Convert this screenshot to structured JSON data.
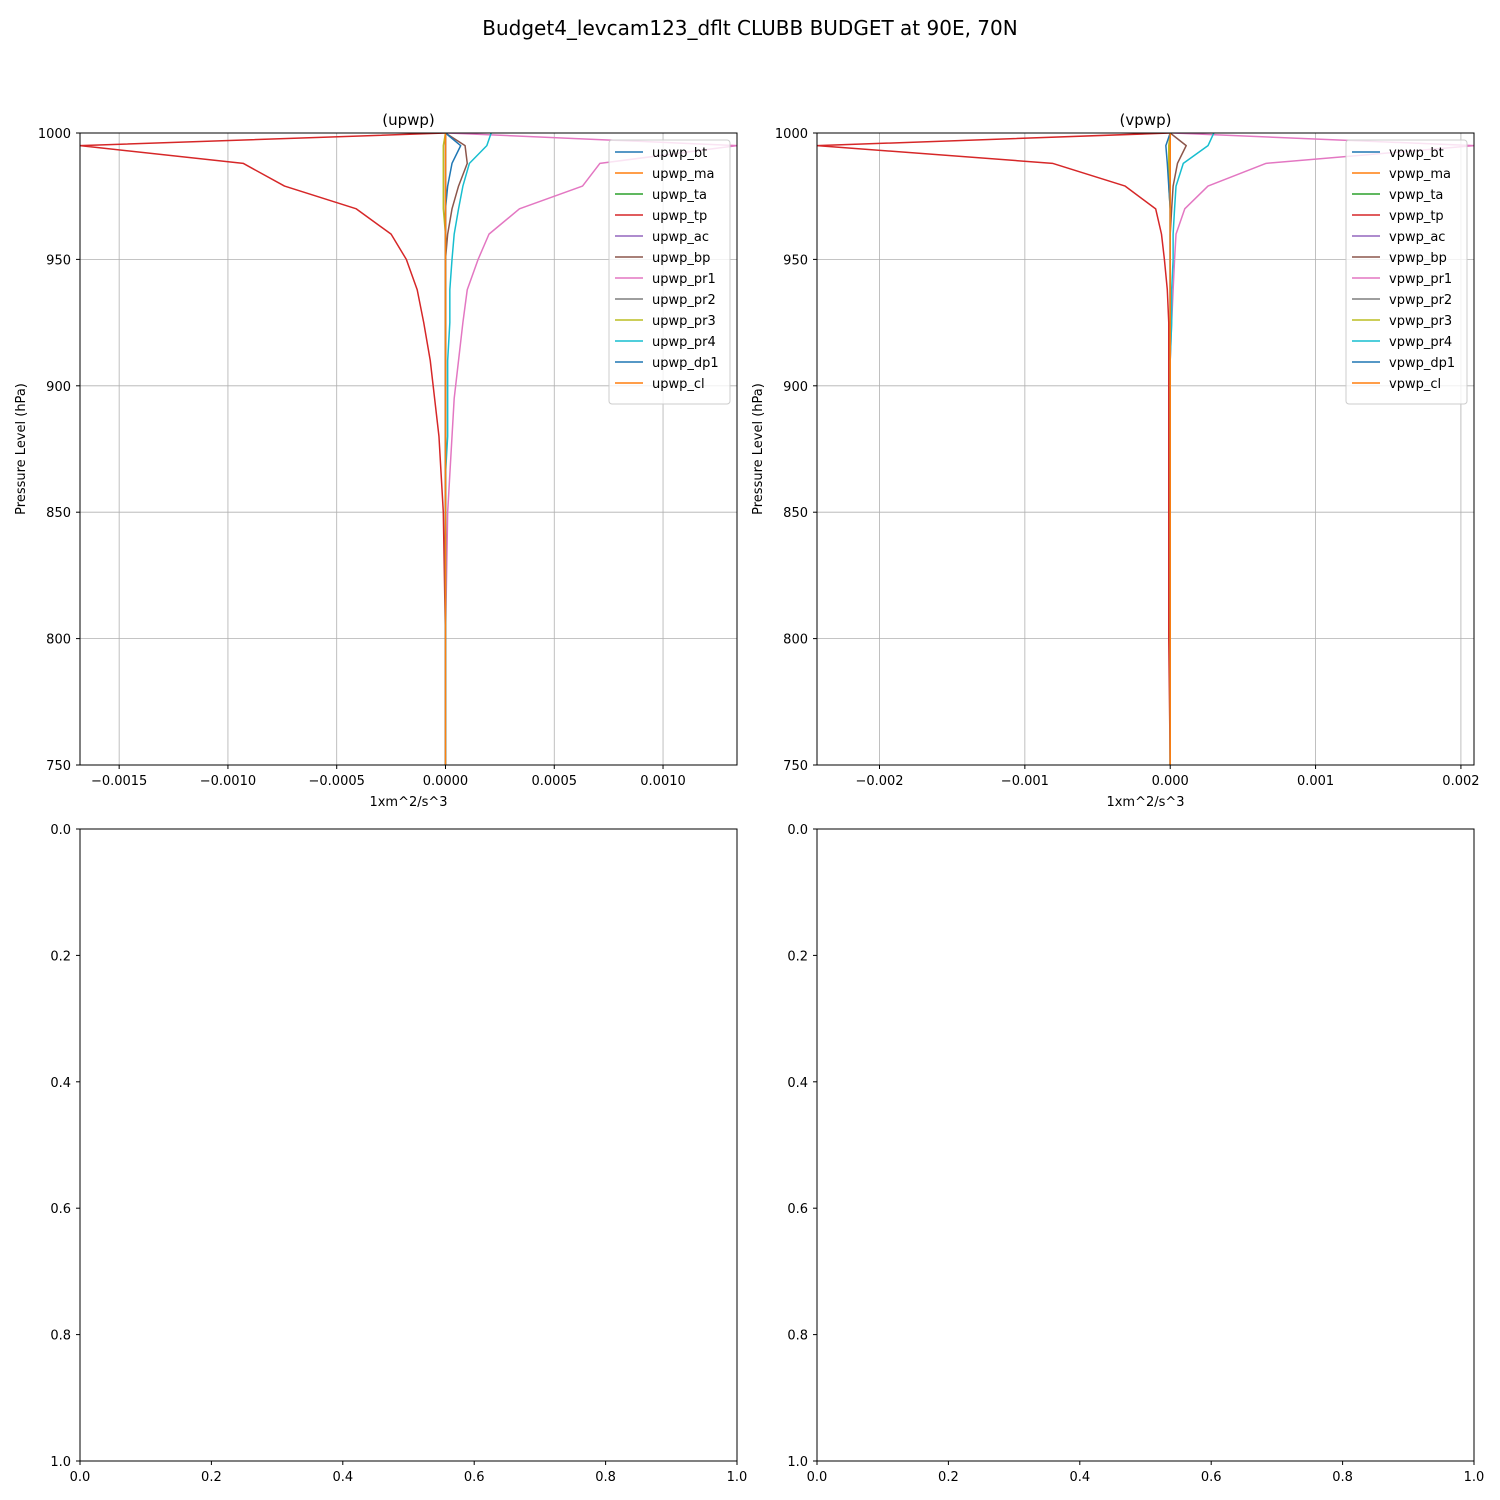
{
  "figure": {
    "suptitle": "Budget4_levcam123_dflt CLUBB BUDGET at 90E, 70N"
  },
  "chart_data": [
    {
      "type": "line",
      "title": "(upwp)",
      "xlabel": "1xm^2/s^3",
      "ylabel": "Pressure Level (hPa)",
      "xlim": [
        -0.00168,
        0.00134
      ],
      "ylim": [
        1000,
        750
      ],
      "x_ticks": [
        "−0.0015",
        "−0.0010",
        "−0.0005",
        "0.0000",
        "0.0005",
        "0.0010"
      ],
      "x_tick_values": [
        -0.0015,
        -0.001,
        -0.0005,
        0,
        0.0005,
        0.001
      ],
      "y_ticks": [
        "750",
        "800",
        "850",
        "900",
        "950",
        "1000"
      ],
      "y_tick_values": [
        750,
        800,
        850,
        900,
        950,
        1000
      ],
      "grid": true,
      "legend_position": "upper-right",
      "levels": [
        750,
        800,
        850,
        865,
        880,
        895,
        910,
        925,
        938,
        950,
        960,
        970,
        979,
        988,
        995,
        1000
      ],
      "series": [
        {
          "name": "upwp_bt",
          "color": "#1f77b4",
          "values": [
            0,
            0,
            0,
            0,
            0,
            0,
            0,
            0,
            0,
            0,
            0,
            0,
            0,
            0,
            0,
            0
          ]
        },
        {
          "name": "upwp_ma",
          "color": "#ff7f0e",
          "values": [
            0,
            0,
            0,
            0,
            0,
            0,
            0,
            0,
            0,
            0,
            0,
            0,
            0,
            0,
            0,
            0
          ]
        },
        {
          "name": "upwp_ta",
          "color": "#2ca02c",
          "values": [
            0,
            0,
            0,
            0,
            0,
            0,
            0,
            0,
            0,
            0,
            0,
            0,
            0,
            0,
            0,
            0
          ]
        },
        {
          "name": "upwp_tp",
          "color": "#d62728",
          "values": [
            0,
            0,
            -1e-05,
            -2e-05,
            -3e-05,
            -5e-05,
            -7e-05,
            -0.0001,
            -0.00013,
            -0.00018,
            -0.00025,
            -0.00041,
            -0.00074,
            -0.00093,
            -0.00168,
            0
          ]
        },
        {
          "name": "upwp_ac",
          "color": "#9467bd",
          "values": [
            0,
            0,
            0,
            0,
            0,
            0,
            0,
            0,
            0,
            0,
            0,
            0,
            0,
            0,
            0,
            0
          ]
        },
        {
          "name": "upwp_bp",
          "color": "#8c564b",
          "values": [
            0,
            0,
            0,
            0,
            0,
            0,
            0,
            0,
            0,
            0,
            1e-05,
            3e-05,
            6e-05,
            0.0001,
            9e-05,
            0
          ]
        },
        {
          "name": "upwp_pr1",
          "color": "#e377c2",
          "values": [
            0,
            0,
            1e-05,
            2e-05,
            3e-05,
            4e-05,
            6e-05,
            8e-05,
            0.0001,
            0.00015,
            0.0002,
            0.00034,
            0.00063,
            0.00071,
            0.00134,
            1e-05
          ]
        },
        {
          "name": "upwp_pr2",
          "color": "#7f7f7f",
          "values": [
            0,
            0,
            0,
            0,
            0,
            0,
            0,
            0,
            0,
            0,
            0,
            0,
            0,
            0,
            0,
            0
          ]
        },
        {
          "name": "upwp_pr3",
          "color": "#bcbd22",
          "values": [
            0,
            0,
            0,
            0,
            0,
            0,
            0,
            0,
            0,
            0,
            0,
            -1e-05,
            -1e-05,
            -1e-05,
            -1e-05,
            0
          ]
        },
        {
          "name": "upwp_pr4",
          "color": "#17becf",
          "values": [
            0,
            0,
            0,
            0,
            1e-05,
            1e-05,
            1e-05,
            2e-05,
            2e-05,
            3e-05,
            4e-05,
            6e-05,
            8e-05,
            0.00011,
            0.00019,
            0.00021
          ]
        },
        {
          "name": "upwp_dp1",
          "color": "#1f77b4",
          "values": [
            0,
            0,
            0,
            0,
            0,
            0,
            0,
            0,
            0,
            0,
            0,
            0,
            1e-05,
            3e-05,
            7e-05,
            0
          ]
        },
        {
          "name": "upwp_cl",
          "color": "#ff7f0e",
          "values": [
            0,
            0,
            0,
            0,
            0,
            0,
            0,
            0,
            0,
            0,
            0,
            0,
            0,
            0,
            0,
            0
          ]
        }
      ]
    },
    {
      "type": "line",
      "title": "(vpwp)",
      "xlabel": "1xm^2/s^3",
      "ylabel": "Pressure Level (hPa)",
      "xlim": [
        -0.00243,
        0.00209
      ],
      "ylim": [
        1000,
        750
      ],
      "x_ticks": [
        "−0.002",
        "−0.001",
        "0.000",
        "0.001",
        "0.002"
      ],
      "x_tick_values": [
        -0.002,
        -0.001,
        0,
        0.001,
        0.002
      ],
      "y_ticks": [
        "750",
        "800",
        "850",
        "900",
        "950",
        "1000"
      ],
      "y_tick_values": [
        750,
        800,
        850,
        900,
        950,
        1000
      ],
      "grid": true,
      "legend_position": "upper-right",
      "levels": [
        750,
        800,
        850,
        865,
        880,
        895,
        910,
        925,
        938,
        950,
        960,
        970,
        979,
        988,
        995,
        1000
      ],
      "series": [
        {
          "name": "vpwp_bt",
          "color": "#1f77b4",
          "values": [
            0,
            0,
            0,
            0,
            0,
            0,
            0,
            0,
            0,
            0,
            0,
            0,
            0,
            0,
            0,
            0
          ]
        },
        {
          "name": "vpwp_ma",
          "color": "#ff7f0e",
          "values": [
            0,
            0,
            0,
            0,
            0,
            0,
            0,
            0,
            0,
            0,
            0,
            0,
            0,
            0,
            0,
            0
          ]
        },
        {
          "name": "vpwp_ta",
          "color": "#2ca02c",
          "values": [
            0,
            0,
            0,
            0,
            0,
            0,
            0,
            0,
            0,
            0,
            0,
            0,
            0,
            0,
            0,
            0
          ]
        },
        {
          "name": "vpwp_tp",
          "color": "#d62728",
          "values": [
            0,
            -1e-05,
            -1e-05,
            -1e-05,
            -1e-05,
            -1e-05,
            -1e-05,
            -1e-05,
            -2e-05,
            -4e-05,
            -6e-05,
            -0.0001,
            -0.00031,
            -0.00081,
            -0.00243,
            0
          ]
        },
        {
          "name": "vpwp_ac",
          "color": "#9467bd",
          "values": [
            0,
            0,
            0,
            0,
            0,
            0,
            0,
            0,
            0,
            0,
            0,
            0,
            0,
            0,
            0,
            0
          ]
        },
        {
          "name": "vpwp_bp",
          "color": "#8c564b",
          "values": [
            0,
            0,
            0,
            0,
            0,
            0,
            0,
            0,
            0,
            0,
            0,
            1e-05,
            2e-05,
            5e-05,
            0.00011,
            0
          ]
        },
        {
          "name": "vpwp_pr1",
          "color": "#e377c2",
          "values": [
            0,
            0,
            0,
            0,
            0,
            0,
            0,
            1e-05,
            2e-05,
            3e-05,
            4e-05,
            0.0001,
            0.00026,
            0.00066,
            0.00209,
            2e-05
          ]
        },
        {
          "name": "vpwp_pr2",
          "color": "#7f7f7f",
          "values": [
            0,
            0,
            0,
            0,
            0,
            0,
            0,
            0,
            0,
            0,
            0,
            0,
            0,
            0,
            0,
            0
          ]
        },
        {
          "name": "vpwp_pr3",
          "color": "#bcbd22",
          "values": [
            0,
            0,
            0,
            0,
            0,
            0,
            0,
            0,
            0,
            0,
            0,
            0,
            -1e-05,
            -1e-05,
            -1e-05,
            0
          ]
        },
        {
          "name": "vpwp_pr4",
          "color": "#17becf",
          "values": [
            0,
            0,
            0,
            0,
            0,
            0,
            0,
            1e-05,
            1e-05,
            2e-05,
            2e-05,
            3e-05,
            4e-05,
            9e-05,
            0.00026,
            0.0003
          ]
        },
        {
          "name": "vpwp_dp1",
          "color": "#1f77b4",
          "values": [
            0,
            0,
            0,
            0,
            0,
            0,
            0,
            0,
            0,
            0,
            0,
            0,
            -1e-05,
            -2e-05,
            -3e-05,
            0
          ]
        },
        {
          "name": "vpwp_cl",
          "color": "#ff7f0e",
          "values": [
            0,
            0,
            0,
            0,
            0,
            0,
            0,
            0,
            0,
            0,
            0,
            0,
            0,
            0,
            0,
            0
          ]
        }
      ]
    },
    {
      "type": "line",
      "title": "",
      "xlim": [
        0,
        1
      ],
      "ylim": [
        0,
        1
      ],
      "x_ticks": [
        "0.0",
        "0.2",
        "0.4",
        "0.6",
        "0.8",
        "1.0"
      ],
      "x_tick_values": [
        0,
        0.2,
        0.4,
        0.6,
        0.8,
        1.0
      ],
      "y_ticks": [
        "0.0",
        "0.2",
        "0.4",
        "0.6",
        "0.8",
        "1.0"
      ],
      "y_tick_values": [
        0,
        0.2,
        0.4,
        0.6,
        0.8,
        1.0
      ],
      "grid": false,
      "series": []
    },
    {
      "type": "line",
      "title": "",
      "xlim": [
        0,
        1
      ],
      "ylim": [
        0,
        1
      ],
      "x_ticks": [
        "0.0",
        "0.2",
        "0.4",
        "0.6",
        "0.8",
        "1.0"
      ],
      "x_tick_values": [
        0,
        0.2,
        0.4,
        0.6,
        0.8,
        1.0
      ],
      "y_ticks": [
        "0.0",
        "0.2",
        "0.4",
        "0.6",
        "0.8",
        "1.0"
      ],
      "y_tick_values": [
        0,
        0.2,
        0.4,
        0.6,
        0.8,
        1.0
      ],
      "grid": false,
      "series": []
    }
  ]
}
